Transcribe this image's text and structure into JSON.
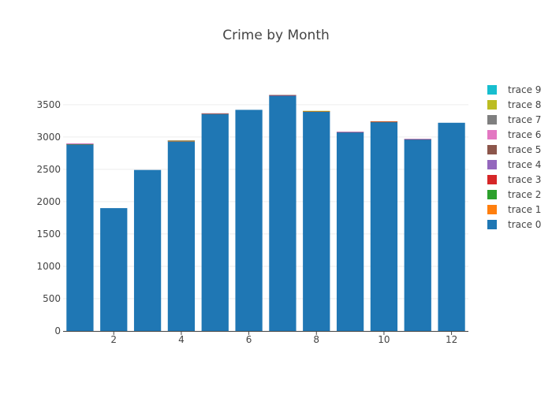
{
  "chart_data": {
    "type": "bar",
    "barmode": "stack",
    "title": "Crime by Month",
    "xlabel": "",
    "ylabel": "",
    "x": [
      1,
      2,
      3,
      4,
      5,
      6,
      7,
      8,
      9,
      10,
      11,
      12
    ],
    "xticks": [
      2,
      4,
      6,
      8,
      10,
      12
    ],
    "ylim": [
      0,
      3900
    ],
    "yticks": [
      0,
      500,
      1000,
      1500,
      2000,
      2500,
      3000,
      3500
    ],
    "grid": true,
    "legend_position": "right",
    "series": [
      {
        "name": "trace 0",
        "color": "#1f77b4",
        "values": [
          2885,
          1900,
          2490,
          2930,
          3355,
          3420,
          3640,
          3390,
          3075,
          3230,
          2965,
          3220
        ]
      },
      {
        "name": "trace 1",
        "color": "#ff7f0e",
        "values": [
          4,
          0,
          0,
          6,
          4,
          0,
          0,
          6,
          0,
          6,
          0,
          0
        ]
      },
      {
        "name": "trace 2",
        "color": "#2ca02c",
        "values": [
          2,
          0,
          0,
          4,
          2,
          0,
          0,
          2,
          0,
          4,
          0,
          0
        ]
      },
      {
        "name": "trace 3",
        "color": "#d62728",
        "values": [
          4,
          0,
          0,
          2,
          2,
          0,
          4,
          2,
          2,
          2,
          2,
          0
        ]
      },
      {
        "name": "trace 4",
        "color": "#9467bd",
        "values": [
          2,
          0,
          0,
          2,
          4,
          0,
          4,
          0,
          4,
          0,
          4,
          0
        ]
      },
      {
        "name": "trace 5",
        "color": "#8c564b",
        "values": [
          0,
          0,
          0,
          0,
          0,
          0,
          2,
          0,
          0,
          0,
          0,
          0
        ]
      },
      {
        "name": "trace 6",
        "color": "#e377c2",
        "values": [
          3,
          0,
          0,
          0,
          0,
          0,
          0,
          0,
          0,
          0,
          0,
          0
        ]
      },
      {
        "name": "trace 7",
        "color": "#7f7f7f",
        "values": [
          0,
          0,
          0,
          0,
          0,
          0,
          0,
          0,
          0,
          0,
          0,
          0
        ]
      },
      {
        "name": "trace 8",
        "color": "#bcbd22",
        "values": [
          0,
          0,
          0,
          6,
          0,
          0,
          0,
          4,
          0,
          0,
          0,
          0
        ]
      },
      {
        "name": "trace 9",
        "color": "#17becf",
        "values": [
          0,
          0,
          0,
          0,
          0,
          0,
          0,
          0,
          0,
          0,
          0,
          0
        ]
      }
    ]
  }
}
